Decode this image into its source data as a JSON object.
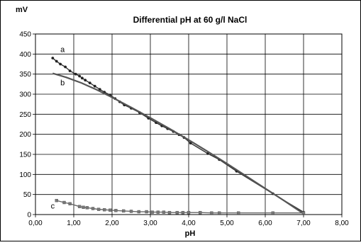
{
  "chart_data": {
    "type": "line",
    "title": "Differential pH at 60 g/l NaCl",
    "xlabel": "pH",
    "ylabel": "mV",
    "xlim": [
      0,
      8
    ],
    "ylim": [
      0,
      450
    ],
    "xticks": [
      "0,00",
      "1,00",
      "2,00",
      "3,00",
      "4,00",
      "5,00",
      "6,00",
      "7,00",
      "8,00"
    ],
    "yticks": [
      "0",
      "50",
      "100",
      "150",
      "200",
      "250",
      "300",
      "350",
      "400",
      "450"
    ],
    "grid": true,
    "series": [
      {
        "name": "a",
        "style": "line-with-dots",
        "color": "#333333",
        "x": [
          0.45,
          0.55,
          0.65,
          0.78,
          0.9,
          1.05,
          1.15,
          1.22,
          1.3,
          1.42,
          1.55,
          1.68,
          1.8,
          1.95,
          2.08,
          2.2,
          2.32,
          2.5,
          2.72,
          2.95,
          3.15,
          3.3,
          3.45,
          3.6,
          3.75,
          3.88,
          4.05,
          4.5,
          4.8,
          5.25,
          6.2,
          7.0
        ],
        "y": [
          390,
          382,
          375,
          368,
          358,
          350,
          345,
          340,
          335,
          328,
          320,
          312,
          305,
          298,
          289,
          281,
          273,
          265,
          254,
          240,
          229,
          221,
          214,
          207,
          199,
          192,
          178,
          152,
          137,
          108,
          52,
          6
        ]
      },
      {
        "name": "b",
        "style": "line",
        "color": "#555555",
        "x": [
          0.45,
          0.8,
          1.2,
          1.6,
          2.0,
          2.5,
          3.0,
          3.5,
          4.0,
          4.5,
          5.0,
          5.5,
          6.0,
          6.5,
          7.0
        ],
        "y": [
          352,
          342,
          328,
          311,
          292,
          267,
          241,
          214,
          186,
          157,
          127,
          96,
          65,
          34,
          2
        ]
      },
      {
        "name": "c",
        "style": "line-with-squares",
        "color": "#666666",
        "x": [
          0.55,
          0.75,
          0.9,
          1.15,
          1.25,
          1.35,
          1.5,
          1.65,
          1.8,
          1.95,
          2.1,
          2.3,
          2.5,
          2.7,
          2.9,
          3.05,
          3.2,
          3.35,
          3.5,
          3.7,
          3.85,
          4.0,
          4.3,
          4.6,
          4.8,
          5.3,
          6.2,
          7.0
        ],
        "y": [
          35,
          30,
          27,
          20,
          18,
          17,
          15,
          13,
          12,
          11,
          10,
          9,
          8,
          7,
          7,
          6,
          6,
          6,
          5,
          5,
          5,
          5,
          5,
          4,
          4,
          4,
          4,
          4
        ]
      }
    ],
    "annotations": [
      {
        "text": "a",
        "x": 0.65,
        "y": 405
      },
      {
        "text": "b",
        "x": 0.65,
        "y": 322
      },
      {
        "text": "c",
        "x": 0.4,
        "y": 15
      }
    ]
  }
}
